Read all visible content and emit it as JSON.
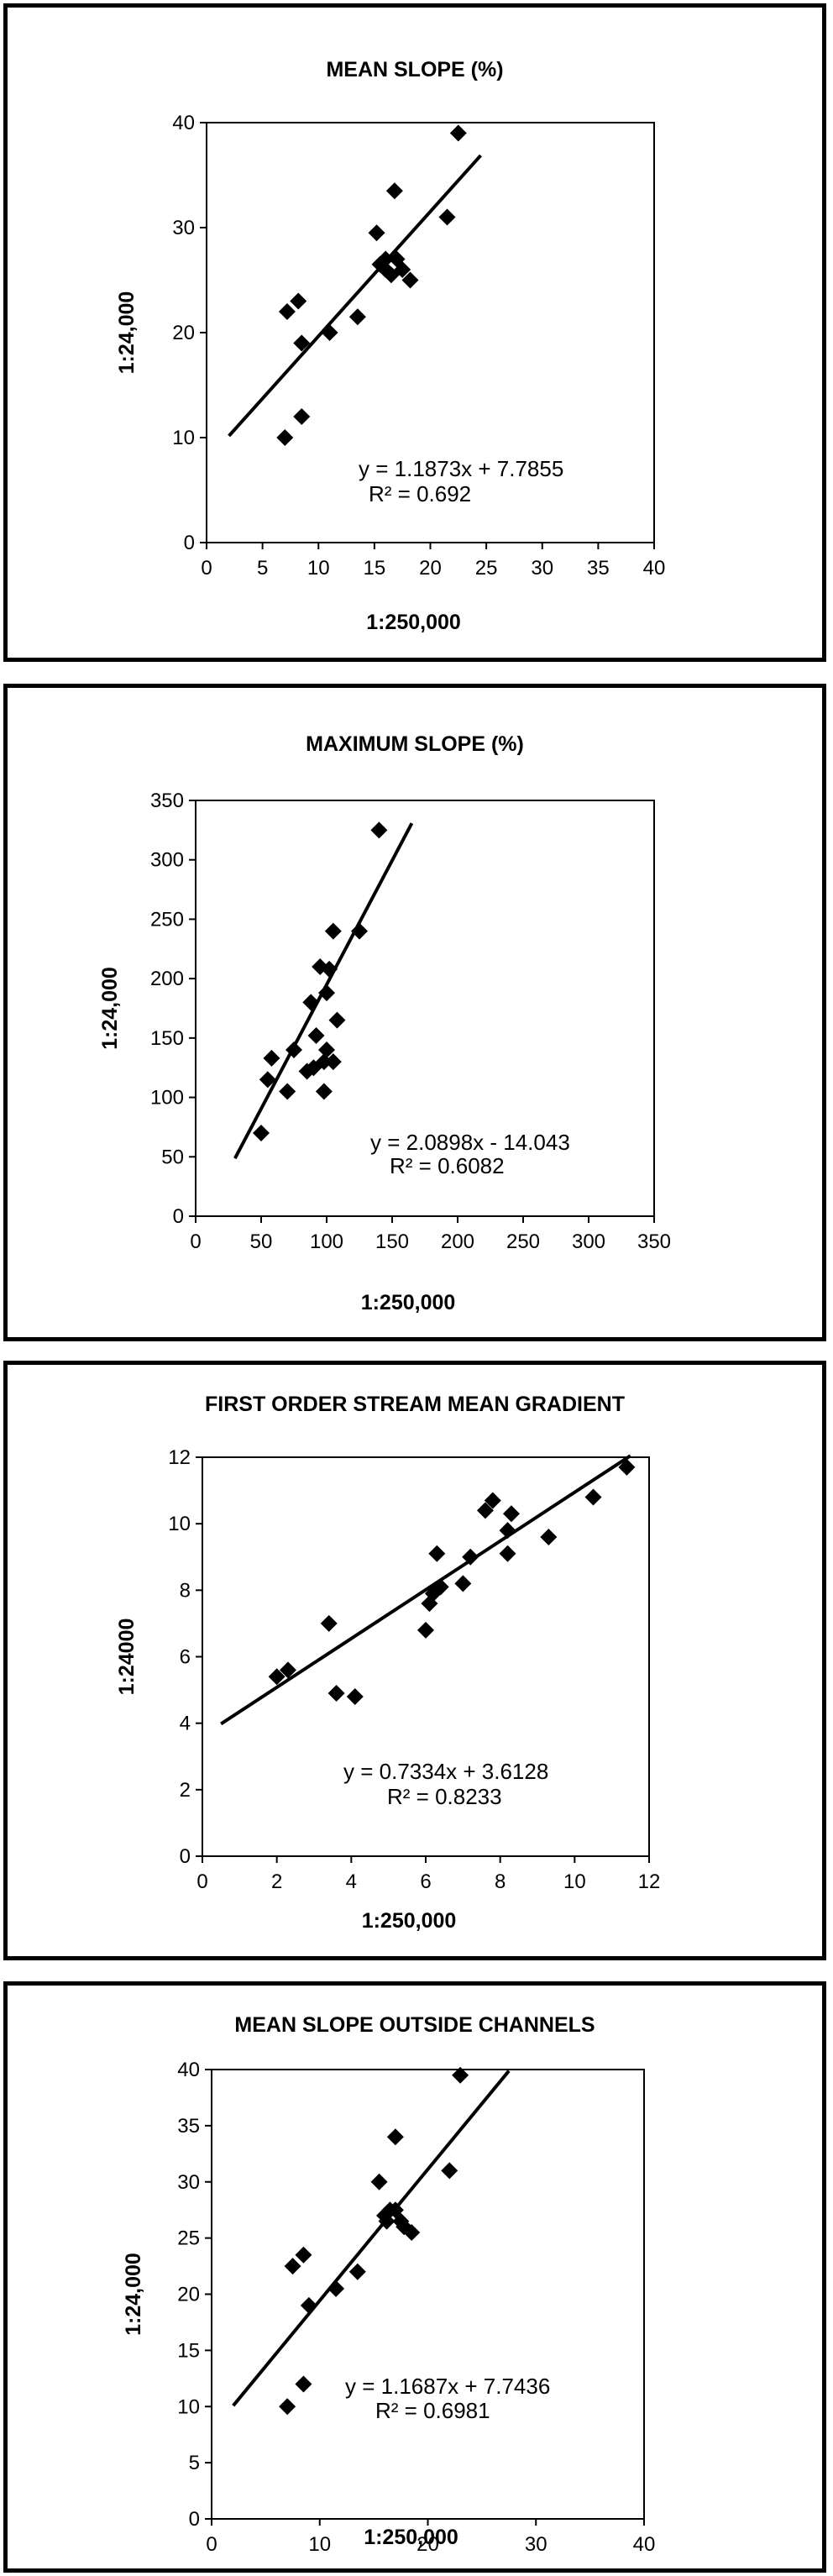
{
  "charts": [
    {
      "title": "MEAN SLOPE (%)",
      "xlabel": "1:250,000",
      "ylabel": "1:24,000",
      "xticks": [
        "0",
        "5",
        "10",
        "15",
        "20",
        "25",
        "30",
        "35",
        "40"
      ],
      "yticks": [
        "0",
        "10",
        "20",
        "30",
        "40"
      ],
      "equation": "y = 1.1873x + 7.7855",
      "r2_label": "R² = 0.692"
    },
    {
      "title": "MAXIMUM SLOPE (%)",
      "xlabel": "1:250,000",
      "ylabel": "1:24,000",
      "xticks": [
        "0",
        "50",
        "100",
        "150",
        "200",
        "250",
        "300",
        "350"
      ],
      "yticks": [
        "0",
        "50",
        "100",
        "150",
        "200",
        "250",
        "300",
        "350"
      ],
      "equation": "y = 2.0898x - 14.043",
      "r2_label": "R² = 0.6082"
    },
    {
      "title": "FIRST ORDER STREAM MEAN GRADIENT",
      "xlabel": "1:250,000",
      "ylabel": "1:24000",
      "xticks": [
        "0",
        "2",
        "4",
        "6",
        "8",
        "10",
        "12"
      ],
      "yticks": [
        "0",
        "2",
        "4",
        "6",
        "8",
        "10",
        "12"
      ],
      "equation": "y = 0.7334x + 3.6128",
      "r2_label": "R² = 0.8233"
    },
    {
      "title": "MEAN SLOPE OUTSIDE CHANNELS",
      "xlabel": "1:250,000",
      "ylabel": "1:24,000",
      "xticks": [
        "0",
        "10",
        "20",
        "30",
        "40"
      ],
      "yticks": [
        "0",
        "5",
        "10",
        "15",
        "20",
        "25",
        "30",
        "35",
        "40"
      ],
      "equation": "y = 1.1687x + 7.7436",
      "r2_label": "R² = 0.6981"
    }
  ],
  "chart_data": [
    {
      "type": "scatter",
      "title": "MEAN SLOPE (%)",
      "xlabel": "1:250,000",
      "ylabel": "1:24,000",
      "xlim": [
        0,
        40
      ],
      "ylim": [
        0,
        40
      ],
      "points": [
        [
          7,
          10
        ],
        [
          8.5,
          12
        ],
        [
          7.2,
          22
        ],
        [
          8.2,
          23
        ],
        [
          8.5,
          19
        ],
        [
          11,
          20
        ],
        [
          13.5,
          21.5
        ],
        [
          15.2,
          29.5
        ],
        [
          15.5,
          26.5
        ],
        [
          16,
          27
        ],
        [
          16,
          26
        ],
        [
          16.8,
          33.5
        ],
        [
          16.5,
          25.5
        ],
        [
          17,
          27
        ],
        [
          17.5,
          26
        ],
        [
          18.2,
          25
        ],
        [
          21.5,
          31
        ],
        [
          22.5,
          39
        ]
      ],
      "trendline": {
        "slope": 1.1873,
        "intercept": 7.7855,
        "x_range": [
          2,
          24.5
        ],
        "r2": 0.692
      }
    },
    {
      "type": "scatter",
      "title": "MAXIMUM SLOPE (%)",
      "xlabel": "1:250,000",
      "ylabel": "1:24,000",
      "xlim": [
        0,
        350
      ],
      "ylim": [
        0,
        350
      ],
      "points": [
        [
          50,
          70
        ],
        [
          55,
          115
        ],
        [
          58,
          133
        ],
        [
          70,
          105
        ],
        [
          75,
          140
        ],
        [
          85,
          122
        ],
        [
          88,
          180
        ],
        [
          90,
          125
        ],
        [
          92,
          152
        ],
        [
          95,
          210
        ],
        [
          98,
          105
        ],
        [
          98,
          130
        ],
        [
          100,
          140
        ],
        [
          100,
          188
        ],
        [
          102,
          208
        ],
        [
          105,
          130
        ],
        [
          105,
          240
        ],
        [
          108,
          165
        ],
        [
          125,
          240
        ],
        [
          140,
          325
        ]
      ],
      "trendline": {
        "slope": 2.0898,
        "intercept": -14.043,
        "x_range": [
          30,
          165
        ],
        "r2": 0.6082
      }
    },
    {
      "type": "scatter",
      "title": "FIRST ORDER STREAM MEAN GRADIENT",
      "xlabel": "1:250,000",
      "ylabel": "1:24000",
      "xlim": [
        0,
        12
      ],
      "ylim": [
        0,
        12
      ],
      "points": [
        [
          2,
          5.4
        ],
        [
          2.3,
          5.6
        ],
        [
          3.4,
          7
        ],
        [
          3.6,
          4.9
        ],
        [
          4.1,
          4.8
        ],
        [
          6,
          6.8
        ],
        [
          6.1,
          7.6
        ],
        [
          6.2,
          7.9
        ],
        [
          6.3,
          9.1
        ],
        [
          6.4,
          8.1
        ],
        [
          7,
          8.2
        ],
        [
          7.2,
          9
        ],
        [
          7.6,
          10.4
        ],
        [
          7.8,
          10.7
        ],
        [
          8.2,
          9.1
        ],
        [
          8.2,
          9.8
        ],
        [
          8.3,
          10.3
        ],
        [
          9.3,
          9.6
        ],
        [
          10.5,
          10.8
        ],
        [
          11.4,
          11.7
        ]
      ],
      "trendline": {
        "slope": 0.7334,
        "intercept": 3.6128,
        "x_range": [
          0.5,
          11.5
        ],
        "r2": 0.8233
      }
    },
    {
      "type": "scatter",
      "title": "MEAN SLOPE OUTSIDE CHANNELS",
      "xlabel": "1:250,000",
      "ylabel": "1:24,000",
      "xlim": [
        0,
        40
      ],
      "ylim": [
        0,
        40
      ],
      "points": [
        [
          7,
          10
        ],
        [
          8.5,
          12
        ],
        [
          7.5,
          22.5
        ],
        [
          8.5,
          23.5
        ],
        [
          9,
          19
        ],
        [
          11.5,
          20.5
        ],
        [
          13.5,
          22
        ],
        [
          15.5,
          30
        ],
        [
          16,
          27
        ],
        [
          16.2,
          26.5
        ],
        [
          16.5,
          27.5
        ],
        [
          17,
          34
        ],
        [
          17,
          27.5
        ],
        [
          17.5,
          26.5
        ],
        [
          17.8,
          26
        ],
        [
          18.5,
          25.5
        ],
        [
          22,
          31
        ],
        [
          23,
          39.5
        ]
      ],
      "trendline": {
        "slope": 1.1687,
        "intercept": 7.7436,
        "x_range": [
          2,
          27.5
        ],
        "r2": 0.6981
      }
    }
  ]
}
